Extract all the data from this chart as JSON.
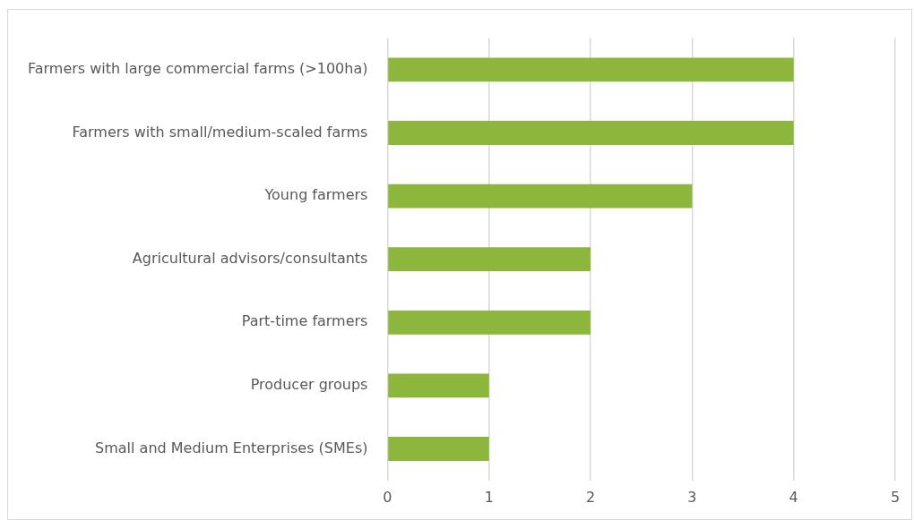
{
  "chart_data": {
    "type": "bar",
    "orientation": "horizontal",
    "categories": [
      "Farmers with large commercial farms (>100ha)",
      "Farmers with small/medium-scaled farms",
      "Young farmers",
      "Agricultural advisors/consultants",
      "Part-time farmers",
      "Producer groups",
      "Small and Medium Enterprises (SMEs)"
    ],
    "values": [
      4,
      4,
      3,
      2,
      2,
      1,
      1
    ],
    "color": "#8db63c",
    "xlim": [
      0,
      5
    ],
    "xticks": [
      0,
      1,
      2,
      3,
      4,
      5
    ],
    "grid": "x"
  }
}
